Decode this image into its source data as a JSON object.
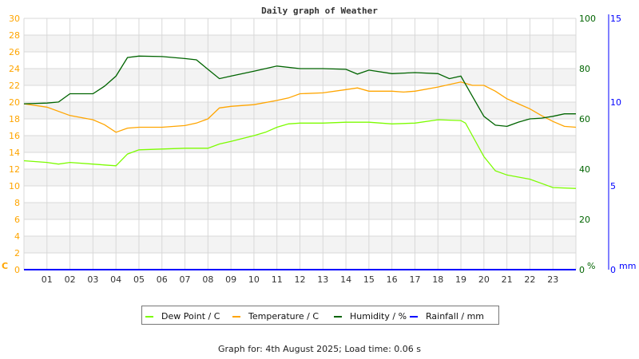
{
  "chart_data": {
    "type": "line",
    "title": "Daily graph of Weather",
    "x_unit": "hour of day",
    "x_ticks": [
      "01",
      "02",
      "03",
      "04",
      "05",
      "06",
      "07",
      "08",
      "09",
      "10",
      "11",
      "12",
      "13",
      "14",
      "15",
      "16",
      "17",
      "18",
      "19",
      "20",
      "21",
      "22",
      "23"
    ],
    "xlim": [
      0,
      24
    ],
    "left_axis": {
      "label": "C",
      "range": [
        0,
        30
      ],
      "ticks": [
        0,
        2,
        4,
        6,
        8,
        10,
        12,
        14,
        16,
        18,
        20,
        22,
        24,
        26,
        28,
        30
      ],
      "color": "#ffa500"
    },
    "right_axis": {
      "label": "%",
      "range": [
        0,
        100
      ],
      "ticks": [
        0,
        20,
        40,
        60,
        80,
        100
      ],
      "color": "#006400"
    },
    "rain_axis": {
      "label": "mm",
      "range": [
        0,
        15
      ],
      "ticks": [
        0,
        5,
        10,
        15
      ],
      "color": "#0000ff"
    },
    "grid": true,
    "legend_placement": "bottom",
    "series": [
      {
        "name": "Dew Point / C",
        "color": "#7cfc00",
        "axis": "left",
        "x": [
          0,
          1,
          1.5,
          2,
          3,
          3.5,
          4,
          4.5,
          5,
          6,
          7,
          8,
          8.5,
          9,
          10,
          10.5,
          11,
          11.5,
          12,
          13,
          14,
          15,
          16,
          17,
          18,
          19,
          19.2,
          19.5,
          20,
          20.5,
          21,
          22,
          22.5,
          23,
          24
        ],
        "y": [
          13.0,
          12.8,
          12.6,
          12.8,
          12.6,
          12.5,
          12.4,
          13.8,
          14.3,
          14.4,
          14.5,
          14.5,
          15.0,
          15.3,
          16.0,
          16.4,
          17.0,
          17.4,
          17.5,
          17.5,
          17.6,
          17.6,
          17.4,
          17.5,
          17.9,
          17.8,
          17.5,
          16.0,
          13.5,
          11.8,
          11.3,
          10.8,
          10.3,
          9.8,
          9.7
        ]
      },
      {
        "name": "Temperature / C",
        "color": "#ffa500",
        "axis": "left",
        "x": [
          0,
          1,
          2,
          3,
          3.5,
          4,
          4.5,
          5,
          6,
          7,
          7.5,
          8,
          8.5,
          9,
          10,
          11,
          11.5,
          12,
          13,
          14,
          14.5,
          15,
          16,
          16.5,
          17,
          18,
          19,
          19.5,
          20,
          20.5,
          21,
          21.5,
          22,
          22.5,
          23,
          23.5,
          24
        ],
        "y": [
          19.8,
          19.4,
          18.4,
          17.9,
          17.3,
          16.4,
          16.9,
          17.0,
          17.0,
          17.2,
          17.5,
          18.0,
          19.3,
          19.5,
          19.7,
          20.2,
          20.5,
          21.0,
          21.1,
          21.5,
          21.7,
          21.3,
          21.3,
          21.2,
          21.3,
          21.8,
          22.4,
          22.0,
          22.0,
          21.3,
          20.4,
          19.8,
          19.2,
          18.4,
          17.7,
          17.1,
          17.0
        ]
      },
      {
        "name": "Humidity / %",
        "color": "#006400",
        "axis": "right",
        "x": [
          0,
          1,
          1.5,
          2,
          3,
          3.5,
          4,
          4.5,
          5,
          6,
          7,
          7.5,
          8,
          8.5,
          9,
          10,
          11,
          12,
          13,
          14,
          14.5,
          15,
          16,
          17,
          18,
          18.5,
          19,
          19.5,
          20,
          20.5,
          21,
          21.5,
          22,
          22.5,
          23,
          23.5,
          24
        ],
        "y": [
          66,
          66.3,
          66.7,
          70,
          70,
          73,
          77,
          84.4,
          85,
          84.8,
          84,
          83.5,
          79.7,
          76,
          77,
          79,
          81,
          80,
          80,
          79.7,
          77.8,
          79.4,
          78,
          78.4,
          78,
          76,
          77,
          69,
          61,
          57.5,
          57,
          58.7,
          60,
          60.3,
          61,
          62,
          62
        ]
      },
      {
        "name": "Rainfall / mm",
        "color": "#0000ff",
        "axis": "rain",
        "x": [
          0,
          24
        ],
        "y": [
          0,
          0
        ]
      }
    ]
  },
  "footer": "Graph for: 4th August 2025; Load time: 0.06 s"
}
